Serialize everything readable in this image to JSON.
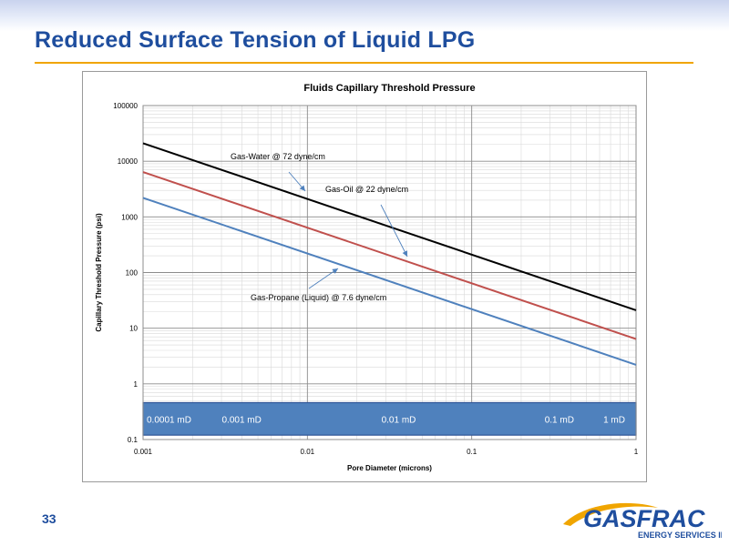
{
  "slide": {
    "title": "Reduced Surface Tension of Liquid LPG",
    "number": "33",
    "logo_name": "GASFRAC",
    "logo_sub": "ENERGY SERVICES INC."
  },
  "colors": {
    "title": "#1f4e9e",
    "rule": "#f0a500",
    "permeability_band": "#4f81bd",
    "gas_water": "#000000",
    "gas_oil": "#c0504d",
    "gas_propane": "#4f81bd"
  },
  "chart_data": {
    "type": "line",
    "title": "Fluids Capillary Threshold Pressure",
    "xlabel": "Pore Diameter (microns)",
    "ylabel": "Capillary Threshold Pressure (psi)",
    "xscale": "log",
    "yscale": "log",
    "xlim": [
      0.001,
      1
    ],
    "ylim": [
      0.1,
      100000
    ],
    "grid": true,
    "x_ticks": [
      "0.001",
      "0.01",
      "0.1",
      "1"
    ],
    "y_ticks": [
      "0.1",
      "1",
      "10",
      "100",
      "1000",
      "10000",
      "100000"
    ],
    "series": [
      {
        "name": "Gas-Water @ 72 dyne/cm",
        "x": [
          0.001,
          1
        ],
        "y": [
          21000,
          21
        ],
        "color": "#000000"
      },
      {
        "name": "Gas-Oil @ 22 dyne/cm",
        "x": [
          0.001,
          1
        ],
        "y": [
          6400,
          6.4
        ],
        "color": "#c0504d"
      },
      {
        "name": "Gas-Propane (Liquid) @ 7.6 dyne/cm",
        "x": [
          0.001,
          1
        ],
        "y": [
          2200,
          2.2
        ],
        "color": "#4f81bd"
      }
    ],
    "band": {
      "y_range": [
        0.12,
        0.46
      ],
      "labels": [
        "0.0001 mD",
        "0.001 mD",
        "0.01 mD",
        "0.1 mD",
        "1 mD"
      ]
    }
  }
}
